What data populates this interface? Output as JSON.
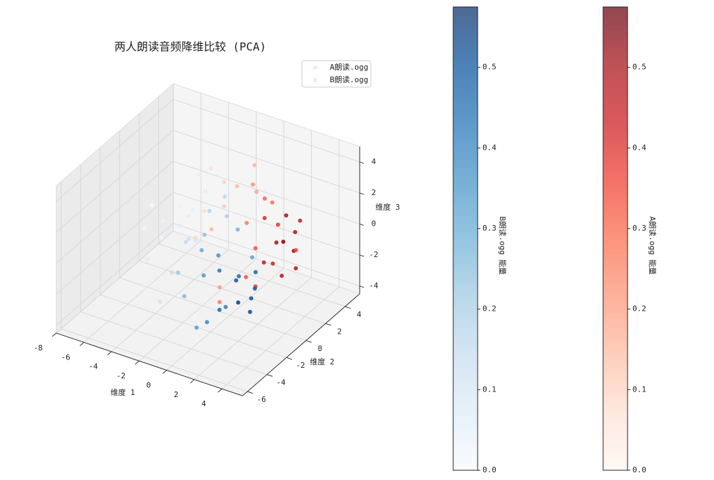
{
  "chart_data": {
    "type": "scatter3d",
    "title": "两人朗读音频降维比较 (PCA)",
    "xlabel": "维度 1",
    "ylabel": "维度 2",
    "zlabel": "维度 3",
    "xlim": [
      -8,
      5.5
    ],
    "ylim": [
      -6.5,
      5.5
    ],
    "zlim": [
      -4.5,
      5
    ],
    "xticks": [
      -8,
      -6,
      -4,
      -2,
      0,
      2,
      4
    ],
    "yticks": [
      -6,
      -4,
      -2,
      0,
      2,
      4
    ],
    "zticks": [
      -4,
      -2,
      0,
      2,
      4
    ],
    "grid": true,
    "legend": "upper right",
    "series": [
      {
        "name": "A朗读.ogg",
        "colors": [
          "#fff5f0",
          "#fee0d2",
          "#fcbba1",
          "#fc9272",
          "#fb6a4a",
          "#ef3b2c",
          "#cb181d",
          "#a50f15",
          "#67000d"
        ],
        "x": [
          3.5,
          3.0,
          2.8,
          4.0,
          3.2,
          2.5,
          3.8,
          2.2,
          3.6,
          4.2,
          2.9,
          3.3,
          1.8,
          2.4,
          3.0,
          1.5,
          2.0,
          3.7,
          0.8,
          1.2,
          0.5,
          -0.2,
          -0.8,
          -1.5,
          -2.0,
          -1.0,
          0.0,
          -2.5,
          -3.0,
          -3.5,
          -1.8,
          0.3,
          -4.0,
          -2.8,
          1.0,
          -0.5
        ],
        "y": [
          0.5,
          1.5,
          -0.5,
          1.0,
          2.0,
          0.0,
          -1.0,
          1.8,
          0.2,
          0.8,
          -1.5,
          2.5,
          1.0,
          -0.8,
          0.5,
          2.2,
          -1.2,
          1.5,
          1.2,
          0.0,
          2.0,
          1.0,
          0.5,
          1.5,
          0.2,
          -0.5,
          2.5,
          1.0,
          0.0,
          1.8,
          -1.0,
          -1.5,
          0.5,
          2.0,
          -2.5,
          -2.0
        ],
        "z": [
          1.0,
          2.0,
          0.0,
          1.5,
          -0.5,
          2.5,
          0.5,
          1.0,
          -1.0,
          0.5,
          1.5,
          1.2,
          3.0,
          -1.5,
          0.8,
          2.0,
          -0.8,
          -1.2,
          3.5,
          1.8,
          2.5,
          3.2,
          2.0,
          2.8,
          1.5,
          1.0,
          3.8,
          2.2,
          1.0,
          2.5,
          0.5,
          -1.8,
          1.0,
          3.0,
          -2.0,
          -1.0
        ],
        "c": [
          0.55,
          0.5,
          0.45,
          0.48,
          0.52,
          0.4,
          0.42,
          0.38,
          0.46,
          0.35,
          0.33,
          0.44,
          0.3,
          0.36,
          0.5,
          0.28,
          0.32,
          0.47,
          0.22,
          0.26,
          0.18,
          0.14,
          0.12,
          0.1,
          0.08,
          0.15,
          0.16,
          0.06,
          0.05,
          0.04,
          0.09,
          0.2,
          0.03,
          0.07,
          0.25,
          0.12
        ]
      },
      {
        "name": "B朗读.ogg",
        "colors": [
          "#f7fbff",
          "#deebf7",
          "#c6dbef",
          "#9ecae1",
          "#6baed6",
          "#4292c6",
          "#2171b5",
          "#08519c",
          "#08306b"
        ],
        "x": [
          1.5,
          2.0,
          2.5,
          1.0,
          0.5,
          3.0,
          1.8,
          0.0,
          -0.5,
          2.2,
          1.2,
          0.8,
          -1.0,
          2.8,
          1.6,
          -1.5,
          -2.0,
          0.2,
          -2.5,
          -3.0,
          -3.5,
          -4.0,
          -4.5,
          -5.0,
          -2.2,
          -1.2,
          -3.8,
          -5.5,
          -2.8,
          -0.8,
          -4.2,
          -6.0,
          -3.2,
          -1.8,
          0.4,
          -2.6
        ],
        "y": [
          -1.5,
          -2.0,
          -1.0,
          -2.5,
          -1.8,
          -2.2,
          -3.0,
          -1.2,
          -2.0,
          -0.5,
          -0.8,
          -3.5,
          -1.5,
          -1.8,
          0.0,
          -0.5,
          -2.5,
          0.5,
          -1.0,
          0.0,
          -1.5,
          0.5,
          -0.5,
          0.0,
          1.0,
          -3.0,
          1.5,
          -1.0,
          -2.0,
          0.8,
          -2.5,
          0.5,
          1.0,
          2.0,
          -4.0,
          -3.5
        ],
        "z": [
          -1.0,
          -2.0,
          -1.5,
          -2.5,
          -0.5,
          -2.2,
          -1.8,
          0.0,
          -1.0,
          -0.8,
          -1.2,
          -2.8,
          0.2,
          -1.6,
          -0.3,
          0.5,
          -1.0,
          0.8,
          0.0,
          -0.5,
          0.8,
          -0.2,
          0.5,
          -1.0,
          1.0,
          -2.0,
          0.3,
          0.0,
          -1.5,
          1.2,
          -0.8,
          0.5,
          -1.2,
          1.5,
          -3.0,
          -2.5
        ],
        "c": [
          0.5,
          0.55,
          0.48,
          0.45,
          0.42,
          0.52,
          0.4,
          0.36,
          0.34,
          0.46,
          0.44,
          0.38,
          0.3,
          0.5,
          0.32,
          0.24,
          0.22,
          0.28,
          0.15,
          0.12,
          0.08,
          0.06,
          0.04,
          0.03,
          0.18,
          0.26,
          0.05,
          0.02,
          0.14,
          0.2,
          0.07,
          0.01,
          0.1,
          0.16,
          0.33,
          0.11
        ]
      }
    ],
    "colorbars": [
      {
        "label": "B朗读.ogg 能量",
        "series": 1,
        "clim": [
          0,
          0.575
        ],
        "ticks": [
          {
            "value": 0,
            "label": "0.0"
          },
          0.1,
          0.2,
          0.3,
          0.4,
          0.5
        ]
      },
      {
        "label": "A朗读.ogg 能量",
        "series": 0,
        "clim": [
          0,
          0.575
        ],
        "ticks": [
          {
            "value": 0,
            "label": "0.0"
          },
          0.1,
          0.2,
          0.3,
          0.4,
          0.5
        ]
      }
    ]
  }
}
